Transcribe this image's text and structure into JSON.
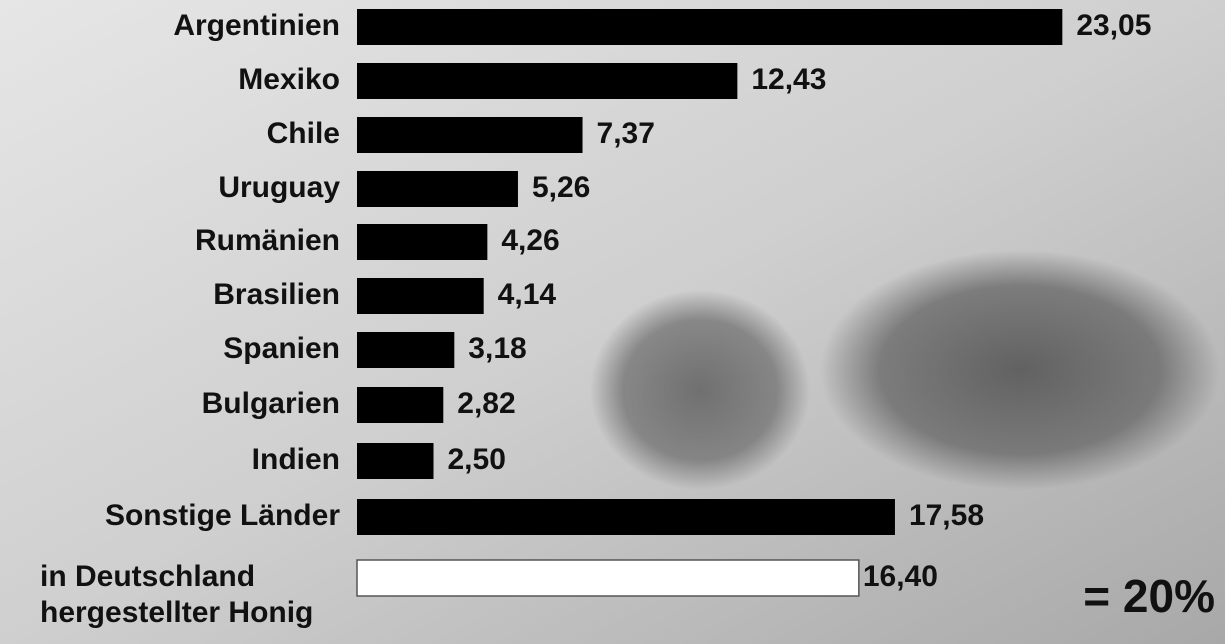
{
  "chart_data": {
    "type": "bar",
    "orientation": "horizontal",
    "categories": [
      "Argentinien",
      "Mexiko",
      "Chile",
      "Uruguay",
      "Rumänien",
      "Brasilien",
      "Spanien",
      "Bulgarien",
      "Indien",
      "Sonstige Länder",
      "in Deutschland\nhergestellter Honig"
    ],
    "values": [
      23.05,
      12.43,
      7.37,
      5.26,
      4.26,
      4.14,
      3.18,
      2.82,
      2.5,
      17.58,
      16.4
    ],
    "value_labels": [
      "23,05",
      "12,43",
      "7,37",
      "5,26",
      "4,26",
      "4,14",
      "3,18",
      "2,82",
      "2,50",
      "17,58",
      "16,40"
    ],
    "colors": [
      "#000000",
      "#000000",
      "#000000",
      "#000000",
      "#000000",
      "#000000",
      "#000000",
      "#000000",
      "#000000",
      "#000000",
      "#ffffff"
    ],
    "annotation": "= 20%",
    "annotation_color": "#ff3300"
  }
}
